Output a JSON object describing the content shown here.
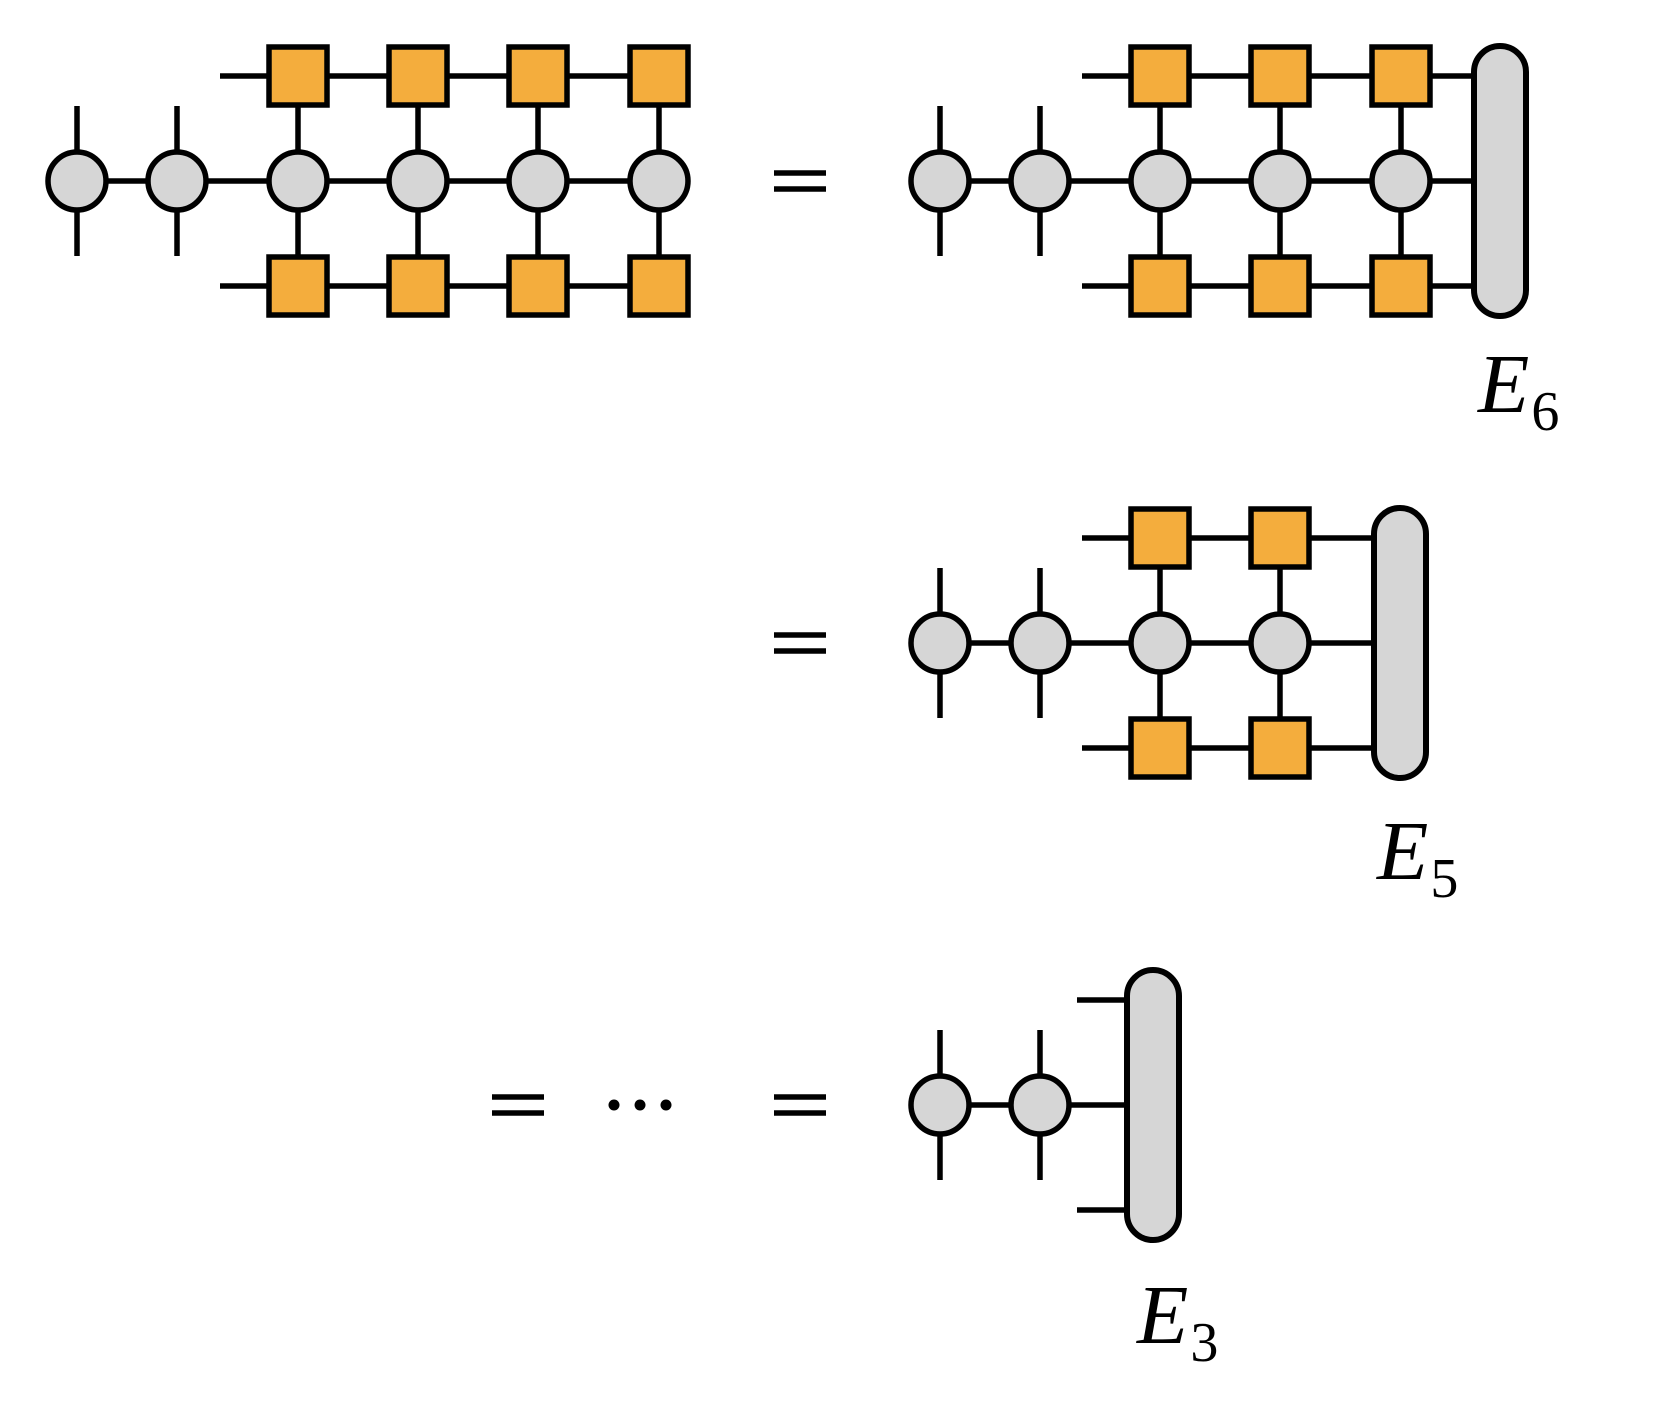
{
  "colors": {
    "site_fill": "#d6d6d6",
    "operator_fill": "#f4ad3d",
    "environment_fill": "#d6d6d6",
    "stroke": "#000000"
  },
  "labels": {
    "e6": {
      "base": "E",
      "sub": "6"
    },
    "e5": {
      "base": "E",
      "sub": "5"
    },
    "e3": {
      "base": "E",
      "sub": "3"
    }
  },
  "rows": [
    {
      "id": "row-1",
      "left_sites": 2,
      "sandwiched_sites": 4,
      "environment": false,
      "equals": false
    },
    {
      "id": "row-1-rhs",
      "left_sites": 2,
      "sandwiched_sites": 3,
      "environment": true,
      "env_label": "e6",
      "equals": true
    },
    {
      "id": "row-2",
      "left_sites": 2,
      "sandwiched_sites": 2,
      "environment": true,
      "env_label": "e5",
      "equals": true
    },
    {
      "id": "row-3",
      "left_sites": 2,
      "sandwiched_sites": 0,
      "environment": true,
      "env_label": "e3",
      "equals": true,
      "ellipsis": true
    }
  ]
}
